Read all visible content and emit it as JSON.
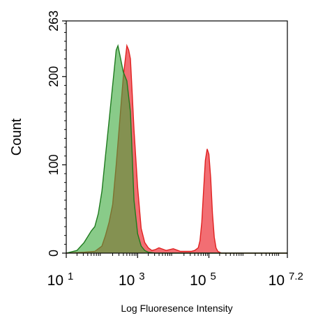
{
  "chart_data": {
    "type": "area",
    "title": "",
    "xlabel": "Log Fluoresence Intensity",
    "ylabel": "Count",
    "x_scale": "log10",
    "xlim": [
      1,
      7.2
    ],
    "ylim": [
      0,
      263
    ],
    "x_ticks": [
      {
        "base": "10",
        "exp": "1",
        "value": 1
      },
      {
        "base": "10",
        "exp": "3",
        "value": 3
      },
      {
        "base": "10",
        "exp": "5",
        "value": 5
      },
      {
        "base": "10",
        "exp": "7.2",
        "value": 7.2
      }
    ],
    "y_ticks": [
      {
        "label": "0",
        "value": 0
      },
      {
        "label": "100",
        "value": 100
      },
      {
        "label": "200",
        "value": 200
      },
      {
        "label": "263",
        "value": 263
      }
    ],
    "grid": false,
    "series": [
      {
        "color": "#e02020",
        "fill": "#f0555b",
        "x": [
          1.0,
          1.5,
          1.8,
          2.0,
          2.1,
          2.2,
          2.3,
          2.4,
          2.5,
          2.6,
          2.7,
          2.75,
          2.8,
          2.85,
          2.9,
          3.0,
          3.1,
          3.2,
          3.3,
          3.4,
          3.5,
          3.6,
          3.8,
          4.0,
          4.2,
          4.4,
          4.5,
          4.6,
          4.7,
          4.75,
          4.8,
          4.85,
          4.9,
          4.95,
          5.0,
          5.05,
          5.1,
          5.15,
          5.2,
          5.25,
          5.3,
          5.35,
          5.4,
          5.5,
          5.8,
          6.5,
          7.2
        ],
        "y": [
          0,
          1,
          2,
          8,
          20,
          35,
          55,
          100,
          150,
          200,
          235,
          230,
          220,
          180,
          140,
          75,
          28,
          12,
          6,
          3,
          4,
          6,
          3,
          5,
          2,
          2,
          2,
          3,
          6,
          14,
          35,
          70,
          105,
          118,
          112,
          85,
          45,
          18,
          6,
          2,
          1,
          0,
          0,
          0,
          0,
          0,
          0
        ]
      },
      {
        "color": "#1e7a1e",
        "fill": "#3aa83a",
        "x": [
          1.0,
          1.3,
          1.5,
          1.7,
          1.8,
          1.9,
          2.0,
          2.1,
          2.2,
          2.3,
          2.4,
          2.45,
          2.5,
          2.6,
          2.7,
          2.8,
          2.85,
          2.9,
          3.0,
          3.1,
          3.2,
          3.3,
          3.5,
          4.0,
          7.2
        ],
        "y": [
          0,
          3,
          12,
          25,
          30,
          45,
          70,
          110,
          150,
          190,
          230,
          235,
          225,
          205,
          195,
          160,
          110,
          60,
          22,
          8,
          3,
          1,
          0,
          0,
          0
        ]
      }
    ]
  }
}
